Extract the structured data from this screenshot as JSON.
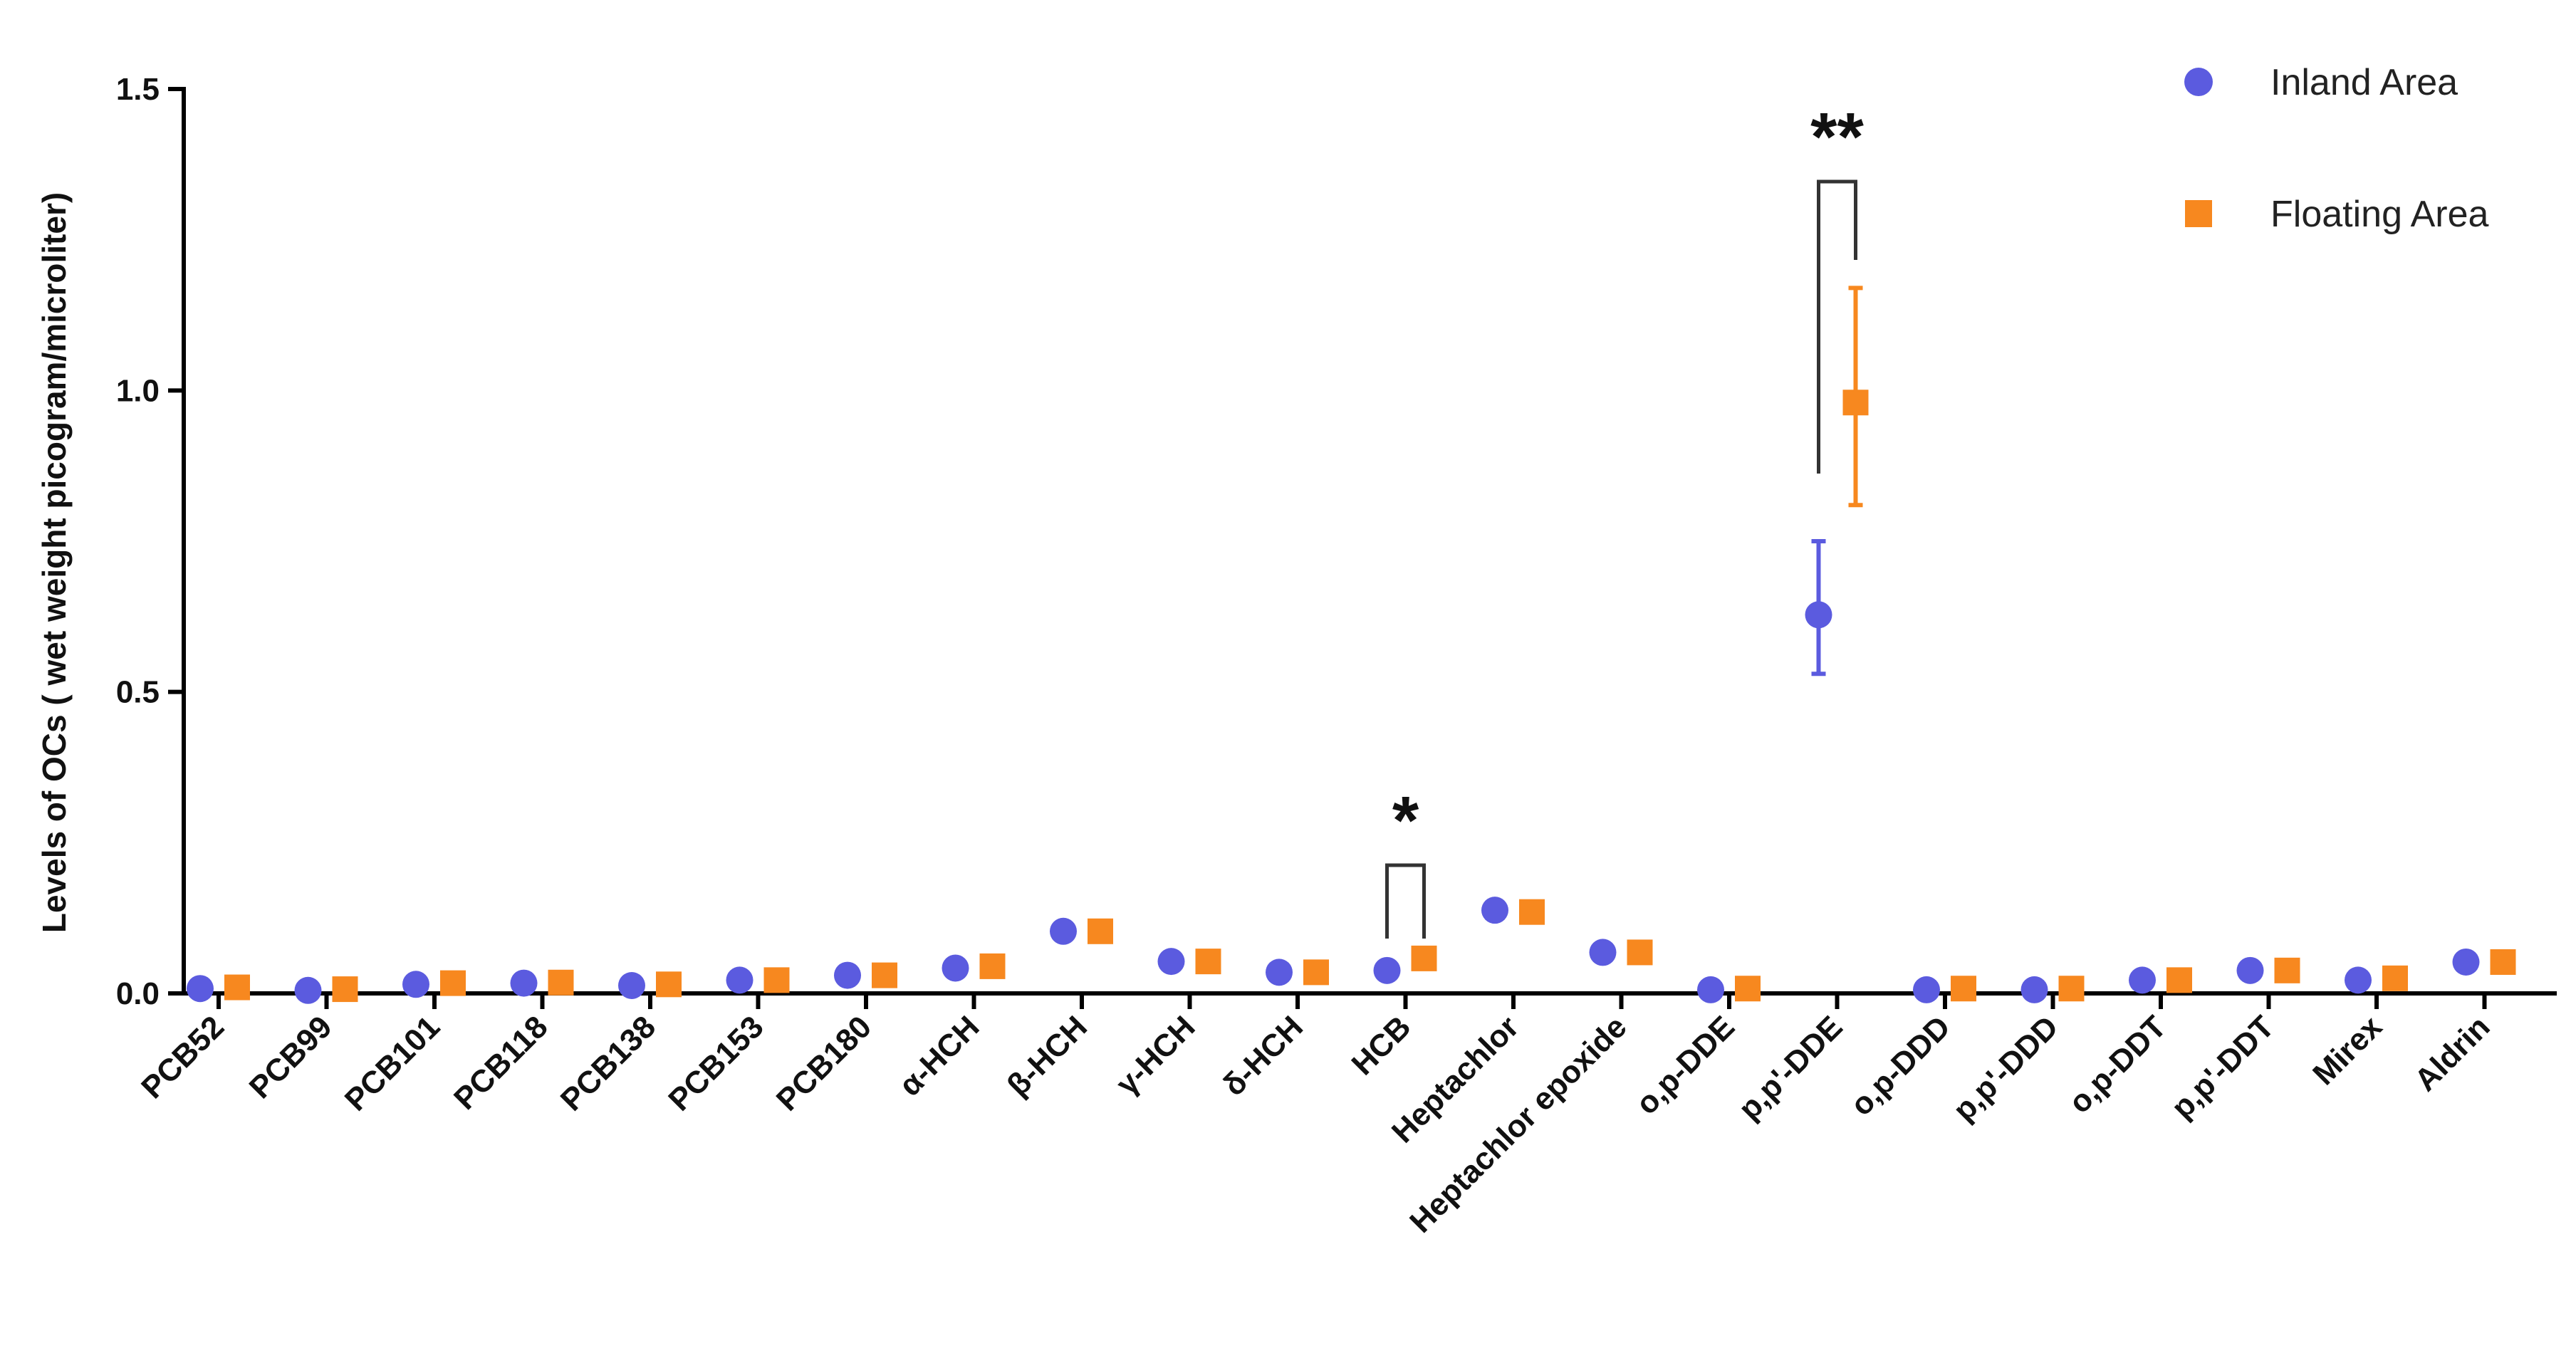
{
  "chart_data": {
    "type": "scatter",
    "title": "",
    "xlabel": "",
    "ylabel": "Levels of OCs ( wet weight picogram/microliter)",
    "ylim": [
      0,
      1.5
    ],
    "yticks": [
      "0.0",
      "0.5",
      "1.0",
      "1.5"
    ],
    "categories": [
      "PCB52",
      "PCB99",
      "PCB101",
      "PCB118",
      "PCB138",
      "PCB153",
      "PCB180",
      "α-HCH",
      "β-HCH",
      "γ-HCH",
      "δ-HCH",
      "HCB",
      "Heptachlor",
      "Heptachlor epoxide",
      "o,p-DDE",
      "p,p'-DDE",
      "o,p-DDD",
      "p,p'-DDD",
      "o,p-DDT",
      "p,p'-DDT",
      "Mirex",
      "Aldrin"
    ],
    "series": [
      {
        "name": "Inland Area",
        "color": "#5b5bdf",
        "marker": "circle",
        "values": [
          0.008,
          0.005,
          0.015,
          0.017,
          0.013,
          0.022,
          0.03,
          0.042,
          0.103,
          0.053,
          0.035,
          0.038,
          0.138,
          0.068,
          0.006,
          0.628,
          0.006,
          0.006,
          0.022,
          0.038,
          0.022,
          0.052
        ],
        "error": [
          null,
          null,
          null,
          null,
          null,
          null,
          null,
          null,
          null,
          null,
          null,
          null,
          null,
          null,
          null,
          [
            0.53,
            0.75
          ],
          null,
          null,
          null,
          null,
          null,
          null
        ]
      },
      {
        "name": "Floating Area",
        "color": "#f7881f",
        "marker": "square",
        "values": [
          0.01,
          0.007,
          0.017,
          0.018,
          0.015,
          0.022,
          0.03,
          0.045,
          0.103,
          0.053,
          0.035,
          0.058,
          0.135,
          0.068,
          0.008,
          0.98,
          0.008,
          0.008,
          0.022,
          0.038,
          0.025,
          0.052
        ],
        "error": [
          null,
          null,
          null,
          null,
          null,
          null,
          null,
          null,
          null,
          null,
          null,
          null,
          null,
          null,
          null,
          [
            0.81,
            1.17
          ],
          null,
          null,
          null,
          null,
          null,
          null
        ]
      }
    ],
    "annotations": [
      {
        "category": "HCB",
        "label": "*"
      },
      {
        "category": "p,p'-DDE",
        "label": "**"
      }
    ],
    "legend_position": "top-right",
    "grid": false
  }
}
